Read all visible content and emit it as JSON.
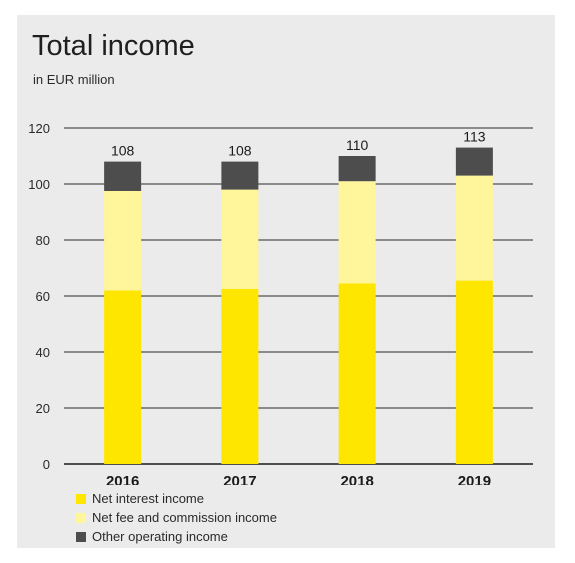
{
  "chart_data": {
    "type": "bar",
    "stacked": true,
    "title": "Total income",
    "subtitle": "in EUR million",
    "categories": [
      "2016",
      "2017",
      "2018",
      "2019"
    ],
    "series": [
      {
        "name": "Net interest income",
        "color": "#ffe600",
        "values": [
          62,
          62.5,
          64.5,
          65.5
        ]
      },
      {
        "name": "Net fee and commission income",
        "color": "#fff59a",
        "values": [
          35.5,
          35.5,
          36.5,
          37.5
        ]
      },
      {
        "name": "Other operating income",
        "color": "#4d4d4d",
        "values": [
          10.5,
          10,
          9,
          10
        ]
      }
    ],
    "totals": [
      "108",
      "108",
      "110",
      "113"
    ],
    "ylim": [
      0,
      120
    ],
    "yticks": [
      "0",
      "20",
      "40",
      "60",
      "80",
      "100",
      "120"
    ],
    "ytick_values": [
      0,
      20,
      40,
      60,
      80,
      100,
      120
    ],
    "grid": true,
    "legend_position": "bottom-left",
    "xlabel": "",
    "ylabel": ""
  }
}
